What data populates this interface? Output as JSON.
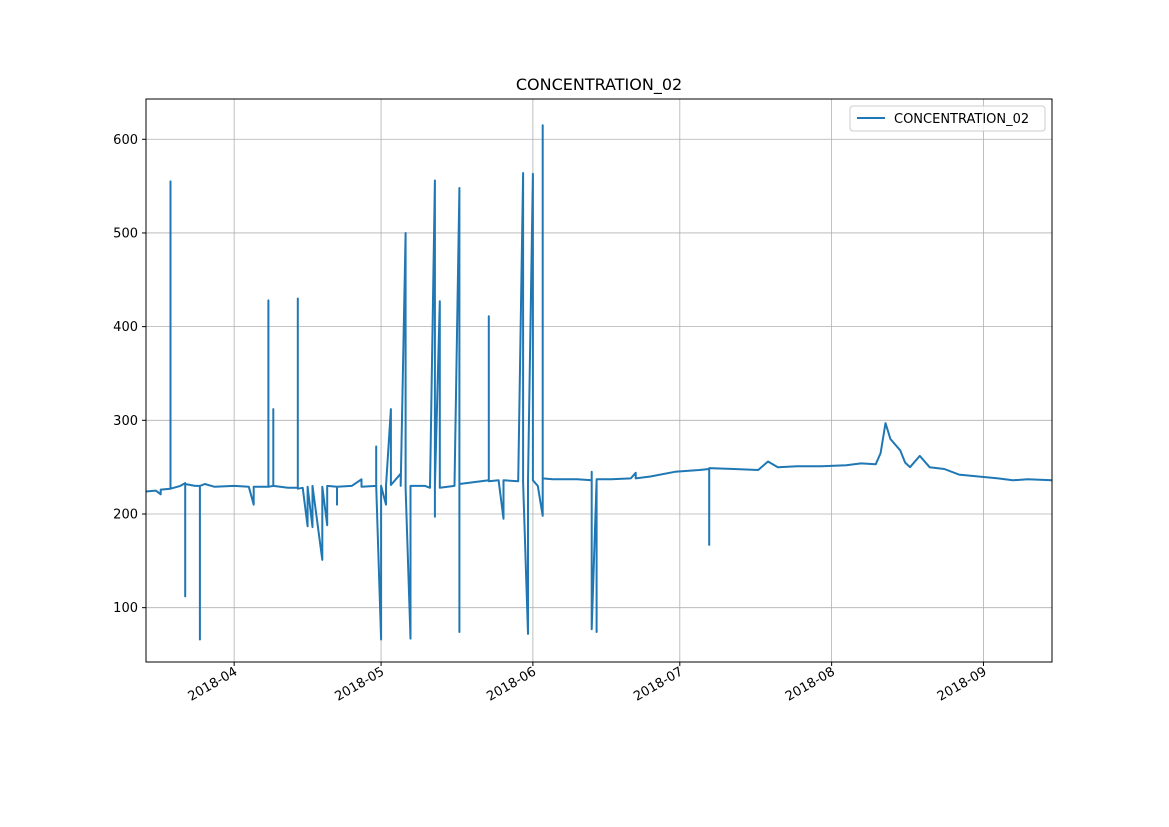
{
  "chart_data": {
    "type": "line",
    "title": "CONCENTRATION_02",
    "xlabel": "",
    "ylabel": "",
    "x_axis_type": "date",
    "xlim": [
      "2018-03-14",
      "2018-09-15"
    ],
    "ylim": [
      42,
      643
    ],
    "y_ticks": [
      100,
      200,
      300,
      400,
      500,
      600
    ],
    "x_ticks": [
      "2018-04-01",
      "2018-05-01",
      "2018-06-01",
      "2018-07-01",
      "2018-08-01",
      "2018-09-01"
    ],
    "x_tick_labels": [
      "2018-04",
      "2018-05",
      "2018-06",
      "2018-07",
      "2018-08",
      "2018-09"
    ],
    "grid": true,
    "legend": {
      "position": "upper right",
      "entries": [
        "CONCENTRATION_02"
      ]
    },
    "line_color": "#1f77b4",
    "series": [
      {
        "name": "CONCENTRATION_02",
        "points": [
          [
            "2018-03-14",
            224
          ],
          [
            "2018-03-16",
            225
          ],
          [
            "2018-03-17",
            221
          ],
          [
            "2018-03-17",
            226
          ],
          [
            "2018-03-19",
            227
          ],
          [
            "2018-03-19",
            555
          ],
          [
            "2018-03-19",
            227
          ],
          [
            "2018-03-21",
            230
          ],
          [
            "2018-03-22",
            233
          ],
          [
            "2018-03-22",
            112
          ],
          [
            "2018-03-22",
            232
          ],
          [
            "2018-03-24",
            230
          ],
          [
            "2018-03-25",
            230
          ],
          [
            "2018-03-25",
            66
          ],
          [
            "2018-03-25",
            230
          ],
          [
            "2018-03-26",
            232
          ],
          [
            "2018-03-28",
            229
          ],
          [
            "2018-04-01",
            230
          ],
          [
            "2018-04-04",
            229
          ],
          [
            "2018-04-05",
            210
          ],
          [
            "2018-04-05",
            229
          ],
          [
            "2018-04-08",
            229
          ],
          [
            "2018-04-08",
            428
          ],
          [
            "2018-04-08",
            229
          ],
          [
            "2018-04-09",
            230
          ],
          [
            "2018-04-09",
            312
          ],
          [
            "2018-04-09",
            230
          ],
          [
            "2018-04-12",
            228
          ],
          [
            "2018-04-14",
            228
          ],
          [
            "2018-04-14",
            430
          ],
          [
            "2018-04-14",
            227
          ],
          [
            "2018-04-15",
            228
          ],
          [
            "2018-04-16",
            187
          ],
          [
            "2018-04-16",
            229
          ],
          [
            "2018-04-17",
            186
          ],
          [
            "2018-04-17",
            229
          ],
          [
            "2018-04-17",
            208
          ],
          [
            "2018-04-17",
            230
          ],
          [
            "2018-04-19",
            151
          ],
          [
            "2018-04-19",
            229
          ],
          [
            "2018-04-20",
            188
          ],
          [
            "2018-04-20",
            230
          ],
          [
            "2018-04-22",
            229
          ],
          [
            "2018-04-22",
            210
          ],
          [
            "2018-04-22",
            229
          ],
          [
            "2018-04-25",
            230
          ],
          [
            "2018-04-27",
            237
          ],
          [
            "2018-04-27",
            229
          ],
          [
            "2018-04-30",
            230
          ],
          [
            "2018-04-30",
            272
          ],
          [
            "2018-04-30",
            230
          ],
          [
            "2018-05-01",
            66
          ],
          [
            "2018-05-01",
            230
          ],
          [
            "2018-05-02",
            210
          ],
          [
            "2018-05-02",
            230
          ],
          [
            "2018-05-03",
            312
          ],
          [
            "2018-05-03",
            231
          ],
          [
            "2018-05-05",
            243
          ],
          [
            "2018-05-05",
            230
          ],
          [
            "2018-05-06",
            500
          ],
          [
            "2018-05-06",
            228
          ],
          [
            "2018-05-07",
            67
          ],
          [
            "2018-05-07",
            230
          ],
          [
            "2018-05-10",
            230
          ],
          [
            "2018-05-11",
            228
          ],
          [
            "2018-05-12",
            556
          ],
          [
            "2018-05-12",
            197
          ],
          [
            "2018-05-12",
            229
          ],
          [
            "2018-05-13",
            427
          ],
          [
            "2018-05-13",
            228
          ],
          [
            "2018-05-16",
            230
          ],
          [
            "2018-05-17",
            548
          ],
          [
            "2018-05-17",
            74
          ],
          [
            "2018-05-17",
            232
          ],
          [
            "2018-05-20",
            234
          ],
          [
            "2018-05-23",
            236
          ],
          [
            "2018-05-23",
            411
          ],
          [
            "2018-05-23",
            235
          ],
          [
            "2018-05-25",
            236
          ],
          [
            "2018-05-26",
            195
          ],
          [
            "2018-05-26",
            236
          ],
          [
            "2018-05-29",
            235
          ],
          [
            "2018-05-30",
            564
          ],
          [
            "2018-05-30",
            234
          ],
          [
            "2018-05-31",
            72
          ],
          [
            "2018-05-31",
            235
          ],
          [
            "2018-06-01",
            563
          ],
          [
            "2018-06-01",
            236
          ],
          [
            "2018-06-02",
            230
          ],
          [
            "2018-06-03",
            198
          ],
          [
            "2018-06-03",
            615
          ],
          [
            "2018-06-03",
            238
          ],
          [
            "2018-06-05",
            237
          ],
          [
            "2018-06-10",
            237
          ],
          [
            "2018-06-13",
            236
          ],
          [
            "2018-06-13",
            245
          ],
          [
            "2018-06-13",
            77
          ],
          [
            "2018-06-14",
            236
          ],
          [
            "2018-06-14",
            74
          ],
          [
            "2018-06-14",
            237
          ],
          [
            "2018-06-17",
            237
          ],
          [
            "2018-06-21",
            238
          ],
          [
            "2018-06-22",
            244
          ],
          [
            "2018-06-22",
            238
          ],
          [
            "2018-06-25",
            240
          ],
          [
            "2018-06-30",
            245
          ],
          [
            "2018-07-05",
            247
          ],
          [
            "2018-07-07",
            248
          ],
          [
            "2018-07-07",
            167
          ],
          [
            "2018-07-07",
            249
          ],
          [
            "2018-07-12",
            248
          ],
          [
            "2018-07-17",
            247
          ],
          [
            "2018-07-19",
            256
          ],
          [
            "2018-07-21",
            250
          ],
          [
            "2018-07-25",
            251
          ],
          [
            "2018-07-30",
            251
          ],
          [
            "2018-08-04",
            252
          ],
          [
            "2018-08-07",
            254
          ],
          [
            "2018-08-10",
            253
          ],
          [
            "2018-08-11",
            265
          ],
          [
            "2018-08-12",
            297
          ],
          [
            "2018-08-13",
            280
          ],
          [
            "2018-08-15",
            268
          ],
          [
            "2018-08-16",
            255
          ],
          [
            "2018-08-17",
            250
          ],
          [
            "2018-08-19",
            262
          ],
          [
            "2018-08-21",
            250
          ],
          [
            "2018-08-24",
            248
          ],
          [
            "2018-08-27",
            242
          ],
          [
            "2018-08-31",
            240
          ],
          [
            "2018-09-04",
            238
          ],
          [
            "2018-09-07",
            236
          ],
          [
            "2018-09-10",
            237
          ],
          [
            "2018-09-15",
            236
          ]
        ]
      }
    ]
  }
}
